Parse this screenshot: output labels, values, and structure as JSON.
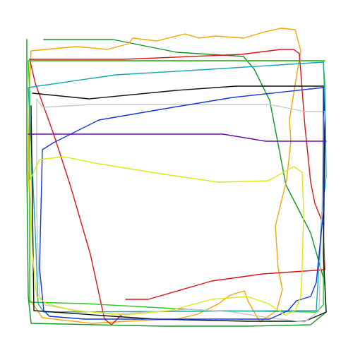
{
  "canvas": {
    "background": "#ffffff"
  },
  "strokes": [
    {
      "name": "stroke-green",
      "color": "#0a9a1e"
    },
    {
      "name": "stroke-orange",
      "color": "#f2a600"
    },
    {
      "name": "stroke-dark-orange",
      "color": "#b8501a"
    },
    {
      "name": "stroke-red",
      "color": "#dd1414"
    },
    {
      "name": "stroke-bright-green",
      "color": "#22cc22"
    },
    {
      "name": "stroke-teal",
      "color": "#15a6b2"
    },
    {
      "name": "stroke-black",
      "color": "#111111"
    },
    {
      "name": "stroke-light-gray",
      "color": "#c8c8c8"
    },
    {
      "name": "stroke-blue",
      "color": "#1438d6"
    },
    {
      "name": "stroke-purple",
      "color": "#6a0dad"
    },
    {
      "name": "stroke-yellow",
      "color": "#dfe814"
    }
  ]
}
